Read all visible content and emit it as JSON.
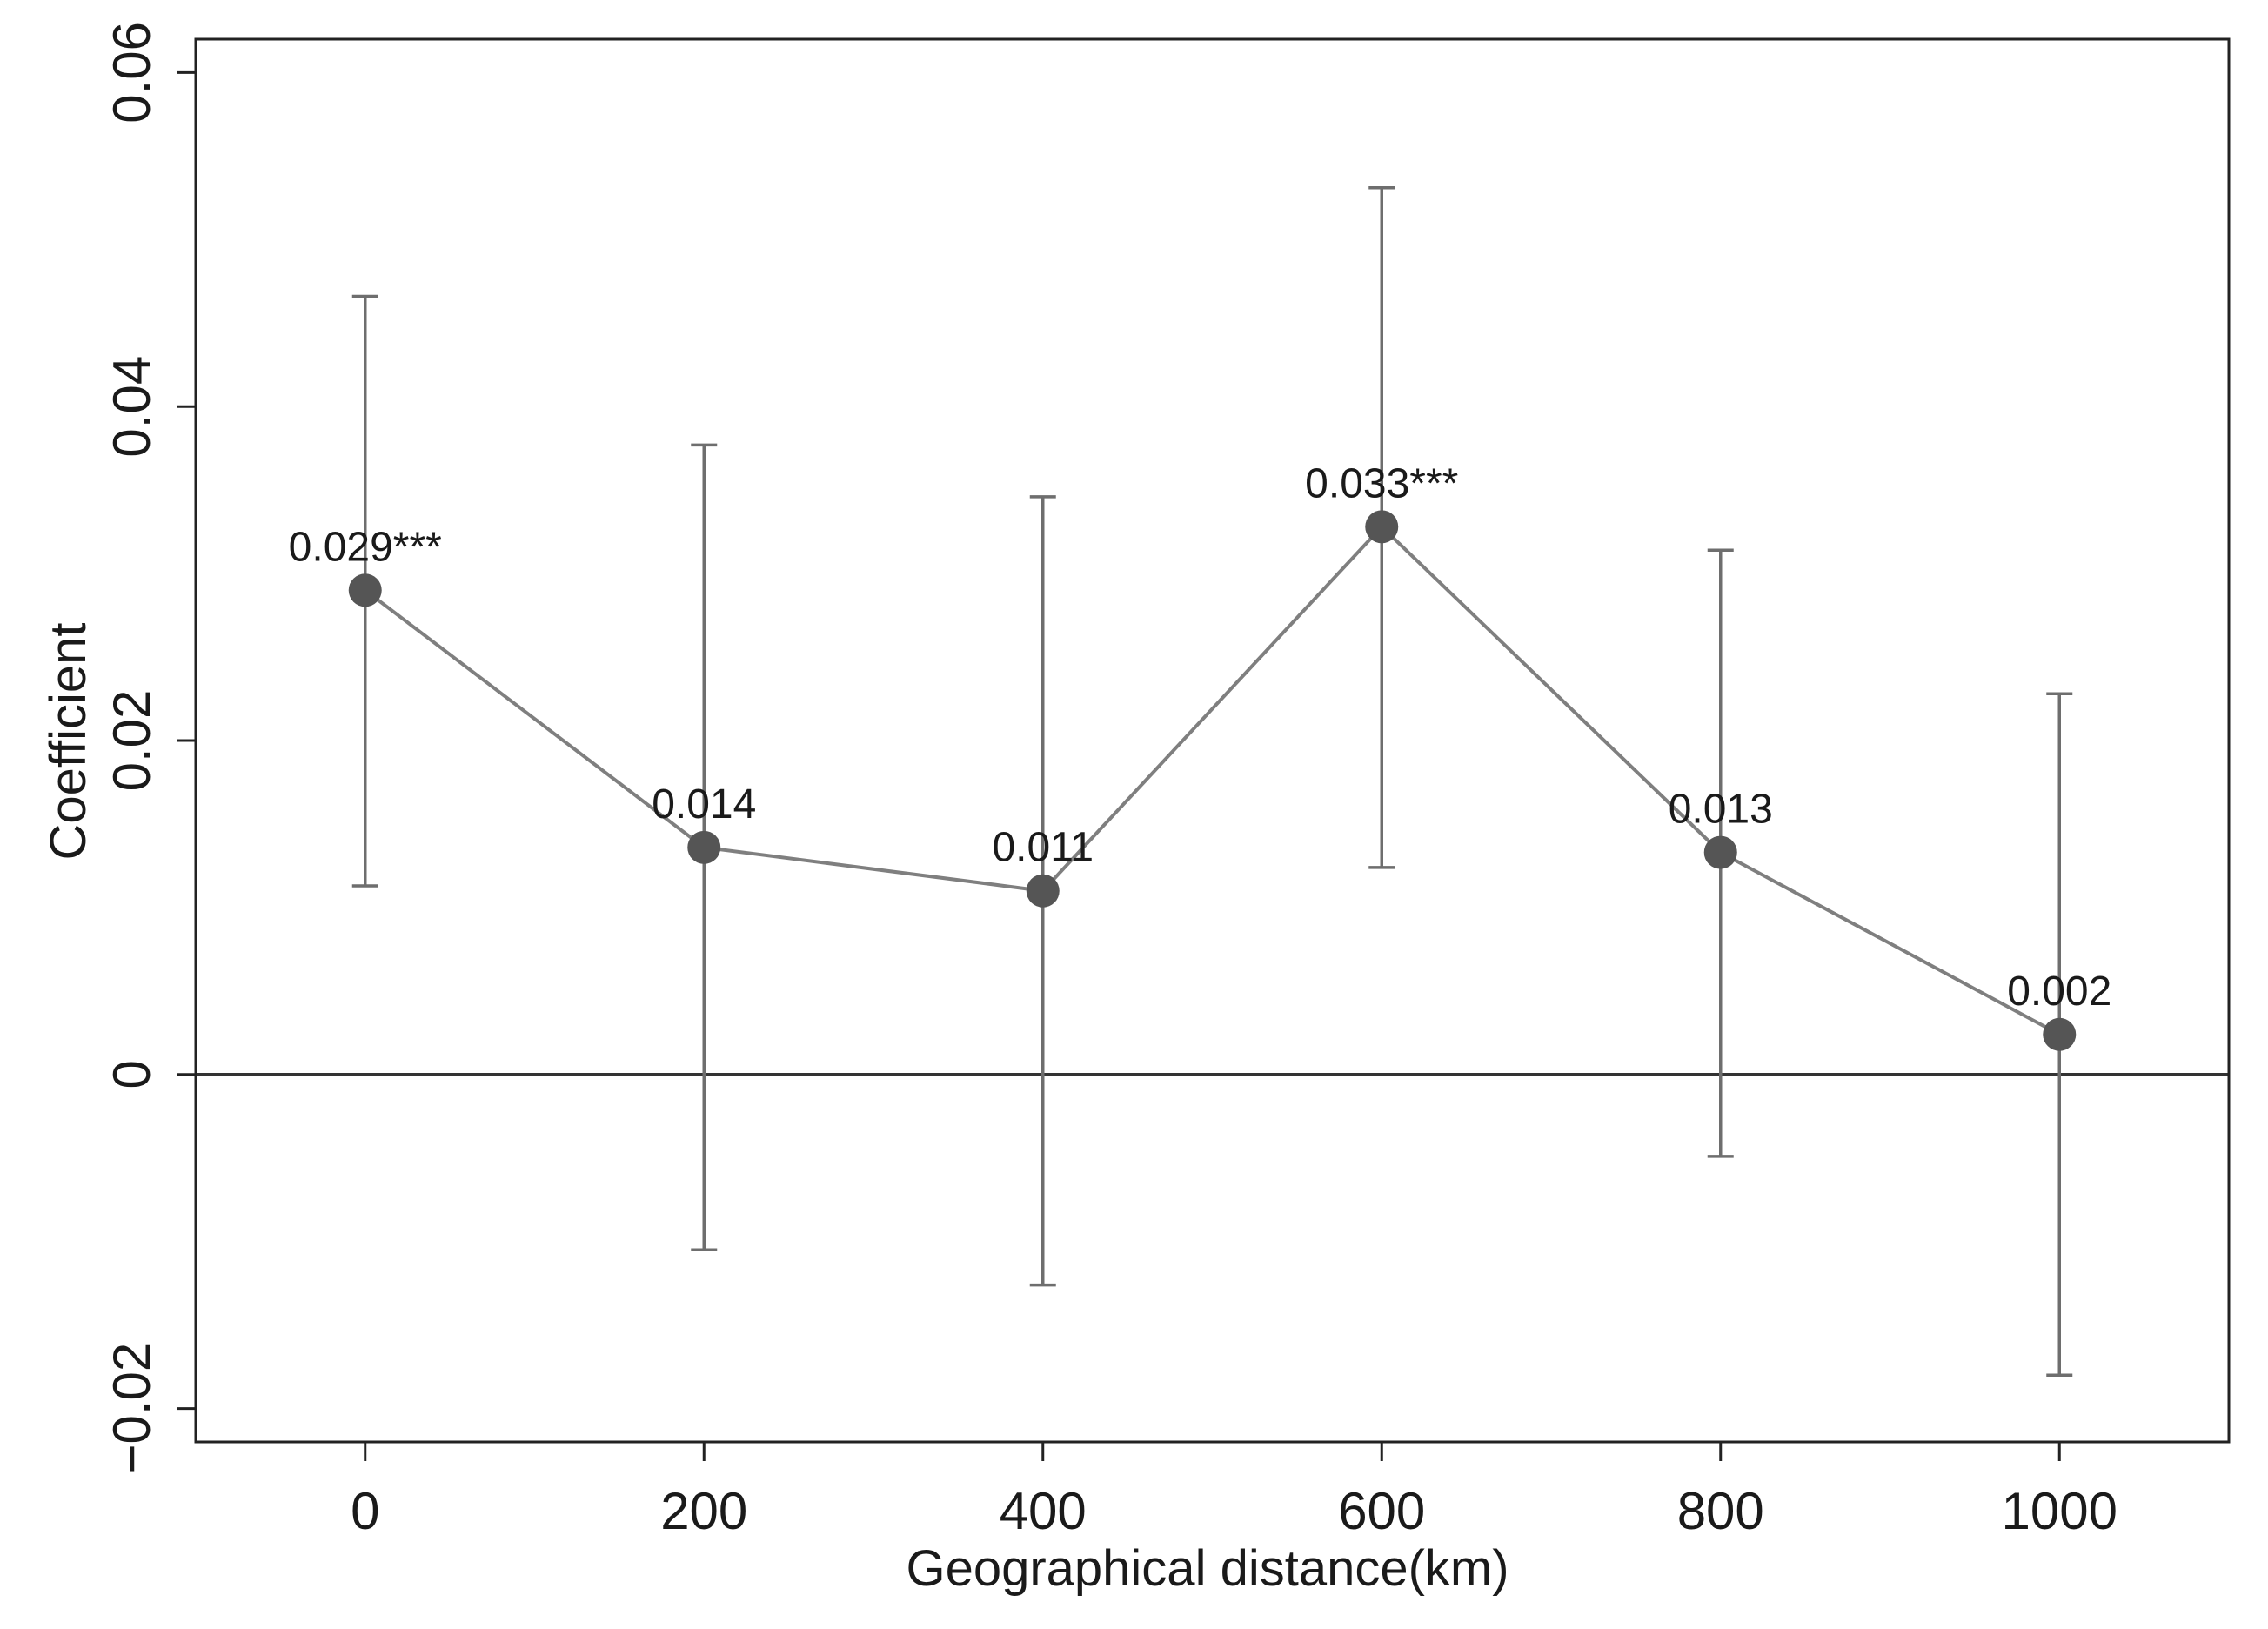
{
  "chart_data": {
    "type": "line",
    "title": "",
    "xlabel": "Geographical distance(km)",
    "ylabel": "Coefficient",
    "x": [
      0,
      200,
      400,
      600,
      800,
      1000
    ],
    "x_ticks": [
      0,
      200,
      400,
      600,
      800,
      1000
    ],
    "x_tick_labels": [
      "0",
      "200",
      "400",
      "600",
      "800",
      "1000"
    ],
    "y_ticks": [
      -0.02,
      0,
      0.02,
      0.04,
      0.06
    ],
    "y_tick_labels": [
      "−0.02",
      "0",
      "0.02",
      "0.04",
      "0.06"
    ],
    "xlim": [
      -100,
      1100
    ],
    "ylim": [
      -0.022,
      0.062
    ],
    "reference_line_y": 0,
    "grid": false,
    "series": [
      {
        "values": [
          0.029,
          0.0136,
          0.011,
          0.0328,
          0.0133,
          0.0024
        ],
        "ci_lower": [
          0.0113,
          -0.0105,
          -0.0126,
          0.0124,
          -0.0049,
          -0.018
        ],
        "ci_upper": [
          0.0466,
          0.0377,
          0.0346,
          0.0531,
          0.0314,
          0.0228
        ],
        "labels": [
          "0.029***",
          "0.014",
          "0.011",
          "0.033***",
          "0.013",
          "0.002"
        ],
        "color": "#7f7f7f",
        "marker_color": "#555555"
      }
    ],
    "colors": {
      "axis": "#222222",
      "zero_line": "#333333",
      "line": "#7f7f7f",
      "error_bar": "#6e6e6e",
      "marker": "#555555"
    }
  }
}
